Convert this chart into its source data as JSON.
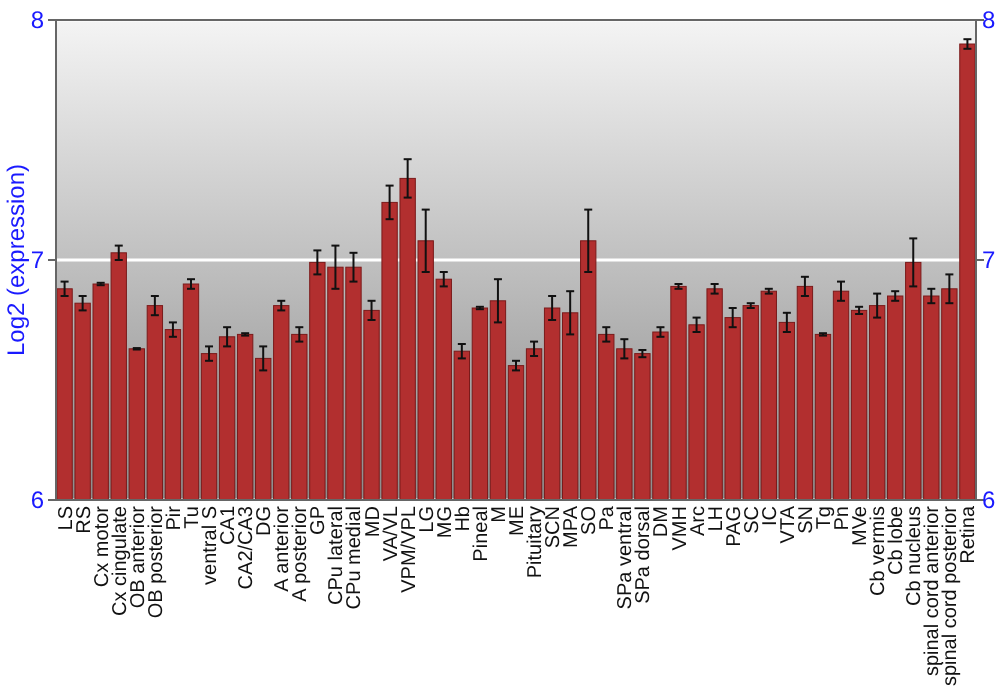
{
  "chart_data": {
    "type": "bar",
    "ylabel": "Log2 (expression)",
    "categories": [
      "LS",
      "RS",
      "Cx motor",
      "Cx cingulate",
      "OB anterior",
      "OB posterior",
      "Pir",
      "Tu",
      "ventral S",
      "CA1",
      "CA2/CA3",
      "DG",
      "A anterior",
      "A posterior",
      "GP",
      "CPu lateral",
      "CPu medial",
      "MD",
      "VA/VL",
      "VPM/VPL",
      "LG",
      "MG",
      "Hb",
      "Pineal",
      "M",
      "ME",
      "Pituitary",
      "SCN",
      "MPA",
      "SO",
      "Pa",
      "SPa ventral",
      "SPa dorsal",
      "DM",
      "VMH",
      "Arc",
      "LH",
      "PAG",
      "SC",
      "IC",
      "VTA",
      "SN",
      "Tg",
      "Pn",
      "MVe",
      "Cb vermis",
      "Cb lobe",
      "Cb nucleus",
      "spinal cord anterior",
      "spinal cord posterior",
      "Retina"
    ],
    "series": [
      {
        "color": "#b22f2f",
        "values": [
          6.88,
          6.82,
          6.9,
          7.03,
          6.63,
          6.81,
          6.71,
          6.9,
          6.61,
          6.68,
          6.69,
          6.59,
          6.81,
          6.69,
          6.99,
          6.97,
          6.97,
          6.79,
          7.24,
          7.34,
          7.08,
          6.92,
          6.62,
          6.8,
          6.83,
          6.56,
          6.63,
          6.8,
          6.78,
          7.08,
          6.69,
          6.63,
          6.61,
          6.7,
          6.89,
          6.73,
          6.88,
          6.76,
          6.81,
          6.87,
          6.74,
          6.89,
          6.69,
          6.87,
          6.79,
          6.81,
          6.85,
          6.99,
          6.85,
          6.88,
          7.9
        ],
        "errors": [
          0.03,
          0.03,
          0.005,
          0.03,
          0.003,
          0.04,
          0.03,
          0.02,
          0.03,
          0.04,
          0.005,
          0.05,
          0.02,
          0.03,
          0.05,
          0.09,
          0.06,
          0.04,
          0.07,
          0.08,
          0.13,
          0.03,
          0.03,
          0.005,
          0.09,
          0.02,
          0.03,
          0.05,
          0.09,
          0.13,
          0.03,
          0.04,
          0.015,
          0.02,
          0.01,
          0.03,
          0.02,
          0.04,
          0.01,
          0.01,
          0.04,
          0.04,
          0.005,
          0.04,
          0.015,
          0.05,
          0.02,
          0.1,
          0.03,
          0.06,
          0.02
        ]
      }
    ],
    "ylim": [
      6,
      8
    ],
    "yticks": [
      6,
      7,
      8
    ],
    "y2lim": [
      6,
      8
    ],
    "y2ticks": [
      6,
      7,
      8
    ],
    "grid": "y"
  }
}
